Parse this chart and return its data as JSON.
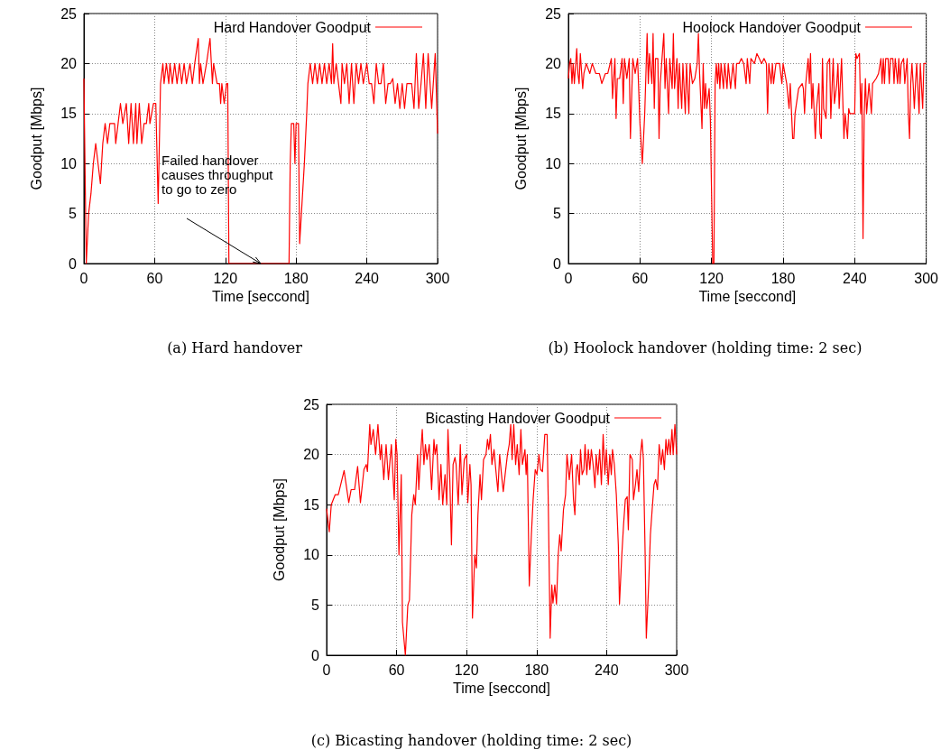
{
  "chart_data": [
    {
      "type": "line",
      "title": "(a) Hard handover",
      "xlabel": "Time [seccond]",
      "ylabel": "Goodput [Mbps]",
      "xlim": [
        0,
        300
      ],
      "ylim": [
        0,
        25
      ],
      "xticks": [
        0,
        60,
        120,
        180,
        240,
        300
      ],
      "yticks": [
        0,
        5,
        10,
        15,
        20,
        25
      ],
      "grid": true,
      "legend": "top right",
      "annotations": [
        "Failed handover\ncauses throughput\nto go to zero"
      ],
      "series": [
        {
          "name": "Hard Handover Goodput",
          "color": "#ff0000",
          "x": [
            0,
            2,
            4,
            6,
            8,
            10,
            12,
            14,
            16,
            18,
            20,
            22,
            24,
            26,
            27,
            29,
            31,
            33,
            36,
            38,
            40,
            42,
            44,
            45,
            47,
            49,
            51,
            53,
            55,
            56,
            59,
            61,
            63,
            65,
            67,
            68,
            70,
            72,
            73,
            75,
            77,
            79,
            81,
            83,
            85,
            87,
            90,
            92,
            94,
            97,
            98,
            99,
            101,
            104,
            107,
            109,
            110,
            113,
            115,
            116,
            117,
            119,
            121,
            122,
            123,
            150,
            174,
            175,
            176,
            178,
            179,
            180,
            182,
            183,
            185,
            187,
            189,
            190,
            192,
            194,
            196,
            198,
            200,
            202,
            204,
            206,
            208,
            210,
            211,
            212,
            214,
            216,
            218,
            219,
            221,
            223,
            225,
            227,
            229,
            231,
            233,
            235,
            237,
            240,
            242,
            244,
            246,
            248,
            250,
            252,
            254,
            256,
            258,
            260,
            262,
            264,
            266,
            268,
            270,
            272,
            274,
            276,
            278,
            280,
            282,
            284,
            286,
            288,
            290,
            292,
            295,
            298,
            300
          ],
          "values": [
            18.5,
            0,
            5,
            7,
            10,
            12,
            10,
            8,
            12,
            14,
            12,
            14,
            14,
            14,
            12,
            14,
            16,
            14,
            16,
            12,
            16,
            12,
            16,
            12,
            16,
            12,
            14,
            14,
            16,
            14,
            16,
            16,
            6,
            18,
            20,
            18,
            20,
            18,
            20,
            18,
            20,
            18,
            20,
            18,
            20,
            18,
            20,
            18,
            20,
            22.5,
            18,
            20,
            18,
            20,
            22.5,
            18,
            20,
            18,
            18,
            16,
            18,
            16,
            18,
            18,
            0,
            0,
            0,
            10,
            14,
            14,
            10,
            14,
            14,
            2,
            6,
            10,
            15,
            18,
            20,
            18,
            20,
            18,
            20,
            18,
            20,
            18,
            20,
            18,
            22,
            18,
            20,
            18,
            16,
            20,
            18,
            20,
            16,
            20,
            16,
            20,
            18,
            20,
            18,
            20,
            18,
            18,
            16,
            20,
            18,
            18,
            20,
            16,
            18,
            18,
            18.5,
            16,
            18,
            15.5,
            18,
            15.5,
            18,
            18,
            18,
            15.5,
            21,
            15.5,
            18,
            21,
            15.5,
            21,
            15.5,
            21,
            13
          ]
        }
      ]
    },
    {
      "type": "line",
      "title": "(b) Hoolock handover (holding time: 2 sec)",
      "xlabel": "Time [seccond]",
      "ylabel": "Goodput [Mbps]",
      "xlim": [
        0,
        300
      ],
      "ylim": [
        0,
        25
      ],
      "xticks": [
        0,
        60,
        120,
        180,
        240,
        300
      ],
      "yticks": [
        0,
        5,
        10,
        15,
        20,
        25
      ],
      "grid": true,
      "legend": "top right",
      "series": [
        {
          "name": "Hoolock Handover Goodput",
          "color": "#ff0000",
          "x": [
            0,
            1,
            2,
            3,
            4,
            5,
            7,
            8,
            9,
            10,
            12,
            13,
            15,
            18,
            20,
            23,
            26,
            28,
            31,
            33,
            36,
            37,
            39,
            40,
            41,
            43,
            45,
            46,
            47,
            49,
            51,
            52,
            54,
            56,
            58,
            60,
            62,
            64,
            66,
            67,
            68,
            70,
            71,
            72,
            73,
            75,
            76,
            77,
            80,
            81,
            82,
            84,
            85,
            87,
            88,
            89,
            91,
            92,
            93,
            95,
            96,
            98,
            99,
            101,
            102,
            104,
            106,
            108,
            109,
            110,
            112,
            113,
            114,
            115,
            116,
            118,
            119,
            121,
            122,
            123,
            124,
            125,
            126,
            127,
            128,
            130,
            131,
            133,
            134,
            136,
            138,
            140,
            141,
            143,
            145,
            147,
            149,
            150,
            152,
            153,
            156,
            158,
            160,
            162,
            164,
            166,
            167,
            168,
            170,
            171,
            172,
            174,
            177,
            179,
            180,
            183,
            185,
            186,
            188,
            189,
            190,
            193,
            196,
            197,
            198,
            199,
            201,
            202,
            203,
            204,
            205,
            207,
            208,
            210,
            211,
            212,
            213,
            214,
            216,
            217,
            219,
            220,
            222,
            223,
            225,
            226,
            227,
            229,
            231,
            232,
            234,
            235,
            236,
            238,
            240,
            241,
            242,
            244,
            245,
            246,
            247,
            248,
            249,
            250,
            252,
            254,
            255,
            258,
            260,
            262,
            263,
            264,
            265,
            266,
            268,
            269,
            270,
            272,
            273,
            274,
            276,
            277,
            278,
            279,
            281,
            282,
            284,
            285,
            286,
            287,
            288,
            289,
            290,
            291,
            292,
            294,
            295,
            297,
            298,
            300
          ],
          "values": [
            18.5,
            20,
            20.5,
            18,
            20,
            18,
            21.5,
            19,
            18,
            21,
            17.5,
            19,
            20,
            19,
            20,
            19,
            19,
            18,
            19,
            19,
            20.5,
            16.5,
            20.5,
            14.5,
            18.5,
            18.5,
            20.5,
            16,
            20.5,
            18.5,
            20.5,
            12.5,
            20.5,
            19,
            20.5,
            14,
            10,
            15,
            23,
            18,
            21,
            18,
            23,
            15.5,
            20.5,
            20.5,
            12.5,
            18,
            23,
            17.5,
            20.5,
            15,
            20.5,
            17.5,
            23,
            17.5,
            20.5,
            15.5,
            20,
            15.5,
            20,
            15,
            20,
            15,
            20,
            18,
            18.5,
            20,
            23,
            19,
            13.5,
            20,
            15.5,
            18,
            15.5,
            17.5,
            14.5,
            0,
            0,
            18,
            20,
            18,
            20,
            17.5,
            20,
            17.5,
            20,
            17.5,
            20,
            17.5,
            20,
            17.5,
            20,
            20,
            20.5,
            20,
            18,
            20.5,
            18,
            20.5,
            20,
            21,
            20.5,
            20,
            20.5,
            20,
            15,
            20,
            18,
            20,
            18,
            20,
            20,
            18,
            20,
            18,
            15.5,
            18,
            12.5,
            12.5,
            15,
            17.5,
            18,
            17.5,
            15,
            18,
            20.5,
            18,
            21,
            15.5,
            18,
            12.5,
            15.5,
            18,
            13,
            12.5,
            20.5,
            15.5,
            14.5,
            20,
            20.5,
            14.5,
            20.5,
            16,
            18,
            20,
            15.5,
            20.5,
            12.5,
            15,
            12.5,
            15.5,
            15,
            15,
            15,
            21,
            20.5,
            21,
            15,
            18,
            2.5,
            15,
            18.5,
            15,
            18,
            15,
            18,
            18.5,
            19,
            20.5,
            18,
            20.5,
            18,
            20.5,
            20.5,
            18,
            20.5,
            20.5,
            18,
            20.5,
            18,
            20.5,
            18,
            20,
            20.5,
            18,
            20.5,
            15,
            12.5,
            18,
            20,
            18,
            15.5,
            18,
            20,
            15,
            20,
            15.5,
            20,
            20
          ]
        }
      ]
    },
    {
      "type": "line",
      "title": "(c) Bicasting handover (holding time: 2 sec)",
      "xlabel": "Time [seccond]",
      "ylabel": "Goodput [Mbps]",
      "xlim": [
        0,
        300
      ],
      "ylim": [
        0,
        25
      ],
      "xticks": [
        0,
        60,
        120,
        180,
        240,
        300
      ],
      "yticks": [
        0,
        5,
        10,
        15,
        20,
        25
      ],
      "grid": true,
      "legend": "top right",
      "series": [
        {
          "name": "Bicasting Handover Goodput",
          "color": "#ff0000",
          "x": [
            0,
            2.3,
            4,
            7.4,
            10,
            15,
            19,
            21,
            24,
            26.6,
            29,
            32,
            34,
            35,
            37,
            38,
            40,
            42,
            44,
            46,
            47,
            49,
            51,
            53,
            55.5,
            58,
            59.3,
            60.4,
            62,
            64,
            65,
            67.5,
            69.6,
            71,
            73,
            74.7,
            76,
            78,
            79,
            80.6,
            82,
            83.4,
            84.7,
            86,
            88,
            90,
            92,
            93,
            94.4,
            96.4,
            98,
            99.5,
            101.5,
            103,
            104,
            105.6,
            107,
            108.4,
            110,
            111,
            112.8,
            114.6,
            116,
            118,
            120,
            121,
            122.8,
            123.8,
            125,
            127,
            128.4,
            129.7,
            131.5,
            132.7,
            134.5,
            136.6,
            137.9,
            139,
            140.4,
            141.7,
            143.5,
            145,
            146.8,
            148.3,
            149.9,
            151.4,
            153,
            155,
            156.5,
            157.8,
            159,
            160.4,
            162,
            163.4,
            165,
            166.5,
            167.8,
            170,
            171,
            172,
            173.7,
            175.5,
            177,
            178.8,
            180.3,
            182,
            183.4,
            185,
            187,
            189,
            190,
            191.6,
            193,
            194,
            195.6,
            197,
            198.5,
            199.8,
            201,
            203,
            204.8,
            206,
            208,
            210,
            211.6,
            212.8,
            214,
            215,
            216.6,
            217.6,
            219,
            220.5,
            221.5,
            223,
            224.3,
            225.6,
            226.9,
            228.4,
            230,
            231,
            232.5,
            234,
            235.5,
            237,
            238.5,
            239.7,
            241.4,
            242.7,
            244,
            245,
            246.6,
            248.3,
            250,
            251,
            253,
            254.5,
            256,
            257.6,
            258.6,
            260,
            262,
            263,
            264.7,
            266,
            267.5,
            269,
            270.3,
            271.5,
            273,
            274,
            276,
            277.5,
            279,
            280.6,
            282,
            283.6,
            285,
            286.7,
            288,
            289.5,
            290.8,
            292,
            293.3,
            294.6,
            296,
            297,
            298.5,
            300
          ],
          "values": [
            14.6,
            12.3,
            15,
            16,
            16,
            18.4,
            15.2,
            16.5,
            16.5,
            18.8,
            15.2,
            18.5,
            19,
            18.3,
            23,
            21,
            22.5,
            20,
            23,
            19.5,
            21,
            17.5,
            21,
            17.5,
            21,
            15.5,
            21.5,
            20,
            10,
            18,
            3.3,
            0,
            5,
            5.5,
            14,
            16,
            15,
            20,
            16.5,
            20,
            22.5,
            19,
            21,
            19.5,
            21,
            16.5,
            21.5,
            20,
            21,
            15.5,
            19,
            15,
            18,
            15,
            22.5,
            17.5,
            11,
            19,
            19.7,
            19,
            15,
            21,
            16,
            19.5,
            20,
            15.2,
            19,
            17,
            3.7,
            10,
            8.7,
            14,
            18,
            15.5,
            19.5,
            20,
            21.5,
            20.5,
            22,
            19,
            20.5,
            18.5,
            16.3,
            20,
            18,
            16.3,
            18,
            20,
            21,
            23,
            19.5,
            23,
            19,
            21,
            18,
            22.5,
            19,
            20.5,
            18,
            20,
            6.9,
            12,
            15.5,
            18.5,
            18,
            20,
            18.5,
            18.3,
            22,
            22,
            15,
            1.7,
            7,
            5.2,
            7,
            5.1,
            10,
            12,
            10.4,
            14.5,
            16,
            20,
            17.5,
            20,
            15.5,
            14,
            18.5,
            19,
            17,
            20.5,
            18,
            18.5,
            21,
            18,
            20.5,
            18.5,
            20.5,
            19,
            16.7,
            20,
            18,
            20.5,
            17,
            22,
            18,
            20.5,
            17,
            20,
            18,
            20.5,
            19,
            16,
            11,
            5.1,
            10,
            13,
            15.5,
            15.8,
            12.5,
            20,
            19.5,
            15.5,
            17,
            18.5,
            16.3,
            20,
            21.5,
            19.5,
            10,
            1.7,
            7,
            12,
            14.5,
            17,
            17.5,
            16.5,
            21,
            19,
            20.5,
            18.5,
            21.5,
            20,
            21.5,
            20,
            22.5,
            20,
            23,
            20
          ]
        }
      ]
    }
  ]
}
